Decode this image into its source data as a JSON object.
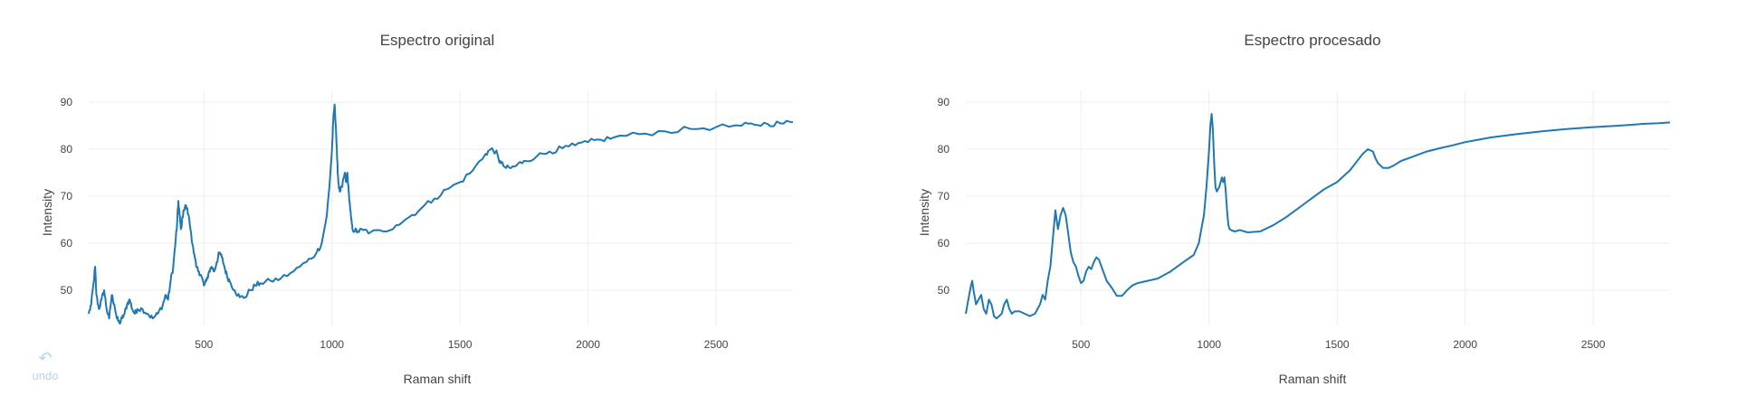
{
  "undo": {
    "label": "undo",
    "icon": "undo-icon"
  },
  "colors": {
    "trace": "#1f77b4",
    "grid": "#eeeeee",
    "text": "#444444",
    "undo": "#b8d4ee"
  },
  "chart_data": [
    {
      "type": "line",
      "title": "Espectro original",
      "xlabel": "Raman shift",
      "ylabel": "Intensity",
      "xlim": [
        50,
        2800
      ],
      "ylim": [
        42.5,
        92.5
      ],
      "xticks": [
        500,
        1000,
        1500,
        2000,
        2500
      ],
      "yticks": [
        50,
        60,
        70,
        80,
        90
      ],
      "grid": true,
      "noisy": true,
      "series": [
        {
          "x": [
            50,
            60,
            70,
            75,
            80,
            90,
            100,
            110,
            120,
            130,
            140,
            150,
            160,
            170,
            180,
            190,
            200,
            210,
            220,
            230,
            240,
            260,
            280,
            300,
            320,
            340,
            350,
            360,
            370,
            380,
            390,
            395,
            400,
            405,
            410,
            420,
            430,
            440,
            450,
            460,
            470,
            480,
            490,
            500,
            510,
            520,
            530,
            540,
            550,
            560,
            570,
            580,
            590,
            600,
            620,
            640,
            660,
            680,
            700,
            720,
            760,
            800,
            850,
            900,
            940,
            960,
            980,
            990,
            1000,
            1005,
            1010,
            1015,
            1020,
            1025,
            1030,
            1040,
            1050,
            1055,
            1060,
            1065,
            1070,
            1075,
            1080,
            1090,
            1100,
            1120,
            1150,
            1200,
            1250,
            1300,
            1350,
            1400,
            1450,
            1500,
            1550,
            1600,
            1620,
            1640,
            1650,
            1660,
            1680,
            1700,
            1720,
            1750,
            1800,
            1850,
            1900,
            1950,
            2000,
            2050,
            2100,
            2200,
            2300,
            2400,
            2500,
            2600,
            2650,
            2700,
            2750,
            2800
          ],
          "y": [
            45,
            47,
            52,
            55,
            49,
            46,
            48,
            50,
            46,
            44,
            49,
            47,
            44,
            43,
            44,
            45,
            47,
            48,
            46,
            45,
            46,
            46,
            45,
            44,
            45,
            47,
            49,
            48,
            52,
            55,
            61,
            64,
            69,
            66,
            63,
            67,
            68,
            66,
            62,
            58,
            55,
            54,
            53,
            51,
            52,
            54,
            55,
            54,
            56,
            58,
            57,
            55,
            53,
            52,
            50,
            48.5,
            48.5,
            50,
            51,
            51.5,
            52,
            52.5,
            54,
            56,
            58,
            60,
            66,
            72,
            80,
            86,
            89.5,
            85,
            78,
            73,
            71,
            72,
            75,
            73,
            75,
            71,
            68,
            65,
            63,
            62.7,
            62.5,
            62.8,
            62.3,
            62.5,
            63.8,
            65.5,
            67.5,
            69.5,
            71.5,
            73,
            75.5,
            79,
            80,
            79.5,
            78,
            77,
            76,
            76,
            76.5,
            77.5,
            78.5,
            79.5,
            80.2,
            80.8,
            81.5,
            82,
            82.5,
            83.2,
            83.8,
            84.3,
            84.7,
            85,
            85.2,
            85.4,
            85.5,
            85.7
          ]
        }
      ]
    },
    {
      "type": "line",
      "title": "Espectro procesado",
      "xlabel": "Raman shift",
      "ylabel": "Intensity",
      "xlim": [
        50,
        2800
      ],
      "ylim": [
        42.5,
        92.5
      ],
      "xticks": [
        500,
        1000,
        1500,
        2000,
        2500
      ],
      "yticks": [
        50,
        60,
        70,
        80,
        90
      ],
      "grid": true,
      "noisy": false,
      "series": [
        {
          "x": [
            50,
            60,
            70,
            75,
            80,
            90,
            100,
            110,
            120,
            130,
            140,
            150,
            160,
            170,
            180,
            190,
            200,
            210,
            220,
            230,
            240,
            260,
            280,
            300,
            320,
            340,
            350,
            360,
            370,
            380,
            390,
            395,
            400,
            405,
            410,
            420,
            430,
            440,
            450,
            460,
            470,
            480,
            490,
            500,
            510,
            520,
            530,
            540,
            550,
            560,
            570,
            580,
            590,
            600,
            620,
            640,
            660,
            680,
            700,
            720,
            760,
            800,
            850,
            900,
            940,
            960,
            980,
            990,
            1000,
            1005,
            1010,
            1015,
            1020,
            1025,
            1030,
            1040,
            1050,
            1055,
            1060,
            1065,
            1070,
            1075,
            1080,
            1090,
            1100,
            1120,
            1150,
            1200,
            1250,
            1300,
            1350,
            1400,
            1450,
            1500,
            1550,
            1600,
            1620,
            1640,
            1650,
            1660,
            1680,
            1700,
            1720,
            1750,
            1800,
            1850,
            1900,
            1950,
            2000,
            2050,
            2100,
            2200,
            2300,
            2400,
            2500,
            2600,
            2650,
            2700,
            2750,
            2800
          ],
          "y": [
            45,
            48,
            51,
            52,
            50,
            47,
            48,
            49,
            46,
            45,
            48,
            47,
            44.5,
            44,
            44.5,
            45,
            47,
            48,
            46,
            45,
            45.5,
            45.5,
            45,
            44.5,
            45,
            47,
            49,
            48,
            52,
            55,
            61,
            64,
            67,
            65,
            63,
            66,
            67.5,
            66,
            62,
            58,
            56,
            55,
            53,
            51.5,
            52,
            54,
            55,
            54.5,
            56,
            57,
            56.5,
            55,
            53.5,
            52,
            50.5,
            48.8,
            48.8,
            50,
            51,
            51.5,
            52,
            52.5,
            54,
            56,
            57.5,
            60,
            66,
            72,
            80,
            85,
            87.5,
            84,
            77,
            72,
            71,
            72,
            74,
            73,
            74,
            71,
            67,
            64,
            63,
            62.7,
            62.5,
            62.8,
            62.3,
            62.5,
            63.8,
            65.5,
            67.5,
            69.5,
            71.5,
            73,
            75.5,
            79,
            80,
            79.5,
            78,
            77,
            76,
            76,
            76.5,
            77.5,
            78.5,
            79.5,
            80.2,
            80.8,
            81.5,
            82,
            82.5,
            83.2,
            83.8,
            84.3,
            84.7,
            85,
            85.2,
            85.4,
            85.5,
            85.7
          ]
        }
      ]
    }
  ]
}
